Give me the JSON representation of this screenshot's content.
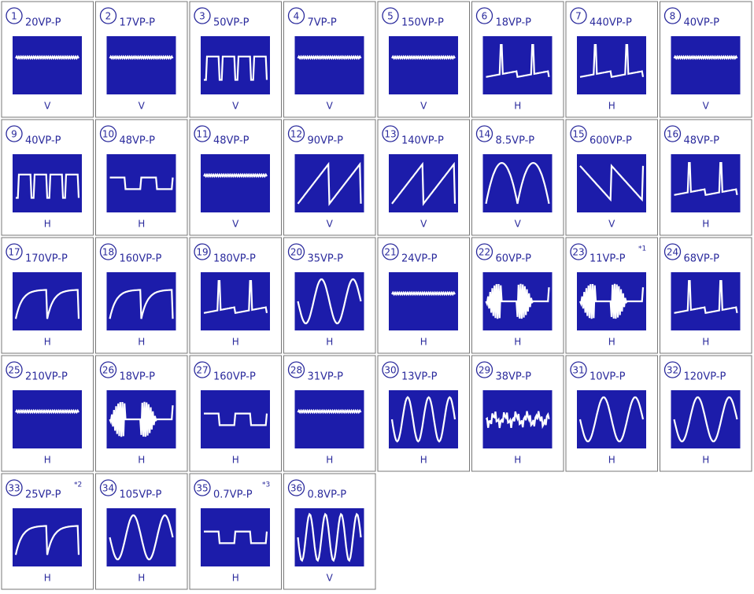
{
  "cards": [
    {
      "number": "1",
      "voltage": "20VP-P",
      "sweep": "V"
    },
    {
      "number": "2",
      "voltage": "17VP-P",
      "sweep": "V"
    },
    {
      "number": "3",
      "voltage": "50VP-P",
      "sweep": "V"
    },
    {
      "number": "4",
      "voltage": "7VP-P",
      "sweep": "V"
    },
    {
      "number": "5",
      "voltage": "150VP-P",
      "sweep": "V"
    },
    {
      "number": "6",
      "voltage": "18VP-P",
      "sweep": "H"
    },
    {
      "number": "7",
      "voltage": "440VP-P",
      "sweep": "H"
    },
    {
      "number": "8",
      "voltage": "40VP-P",
      "sweep": "V"
    },
    {
      "number": "9",
      "voltage": "40VP-P",
      "sweep": "H"
    },
    {
      "number": "10",
      "voltage": "48VP-P",
      "sweep": "H"
    },
    {
      "number": "11",
      "voltage": "48VP-P",
      "sweep": "V"
    },
    {
      "number": "12",
      "voltage": "90VP-P",
      "sweep": "V"
    },
    {
      "number": "13",
      "voltage": "140VP-P",
      "sweep": "V"
    },
    {
      "number": "14",
      "voltage": "8.5VP-P",
      "sweep": "V"
    },
    {
      "number": "15",
      "voltage": "600VP-P",
      "sweep": "V"
    },
    {
      "number": "16",
      "voltage": "48VP-P",
      "sweep": "H"
    },
    {
      "number": "17",
      "voltage": "170VP-P",
      "sweep": "H"
    },
    {
      "number": "18",
      "voltage": "160VP-P",
      "sweep": "H"
    },
    {
      "number": "19",
      "voltage": "180VP-P",
      "sweep": "H"
    },
    {
      "number": "20",
      "voltage": "35VP-P",
      "sweep": "H"
    },
    {
      "number": "21",
      "voltage": "24VP-P",
      "sweep": "H"
    },
    {
      "number": "22",
      "voltage": "60VP-P",
      "sweep": "H"
    },
    {
      "number": "23",
      "voltage": "11VP-P",
      "note": "*1",
      "sweep": "H"
    },
    {
      "number": "24",
      "voltage": "68VP-P",
      "sweep": "H"
    },
    {
      "number": "25",
      "voltage": "210VP-P",
      "sweep": "H"
    },
    {
      "number": "26",
      "voltage": "18VP-P",
      "sweep": "H"
    },
    {
      "number": "27",
      "voltage": "160VP-P",
      "sweep": "H"
    },
    {
      "number": "28",
      "voltage": "31VP-P",
      "sweep": "H"
    },
    {
      "number": "30",
      "voltage": "13VP-P",
      "sweep": "H"
    },
    {
      "number": "29",
      "voltage": "38VP-P",
      "sweep": "H"
    },
    {
      "number": "31",
      "voltage": "10VP-P",
      "sweep": "H"
    },
    {
      "number": "32",
      "voltage": "120VP-P",
      "sweep": "H"
    },
    {
      "number": "33",
      "voltage": "25VP-P",
      "note": "*2",
      "sweep": "H"
    },
    {
      "number": "34",
      "voltage": "105VP-P",
      "sweep": "H"
    },
    {
      "number": "35",
      "voltage": "0.7VP-P",
      "note": "*3",
      "sweep": "H"
    },
    {
      "number": "36",
      "voltage": "0.8VP-P",
      "sweep": "V"
    }
  ]
}
